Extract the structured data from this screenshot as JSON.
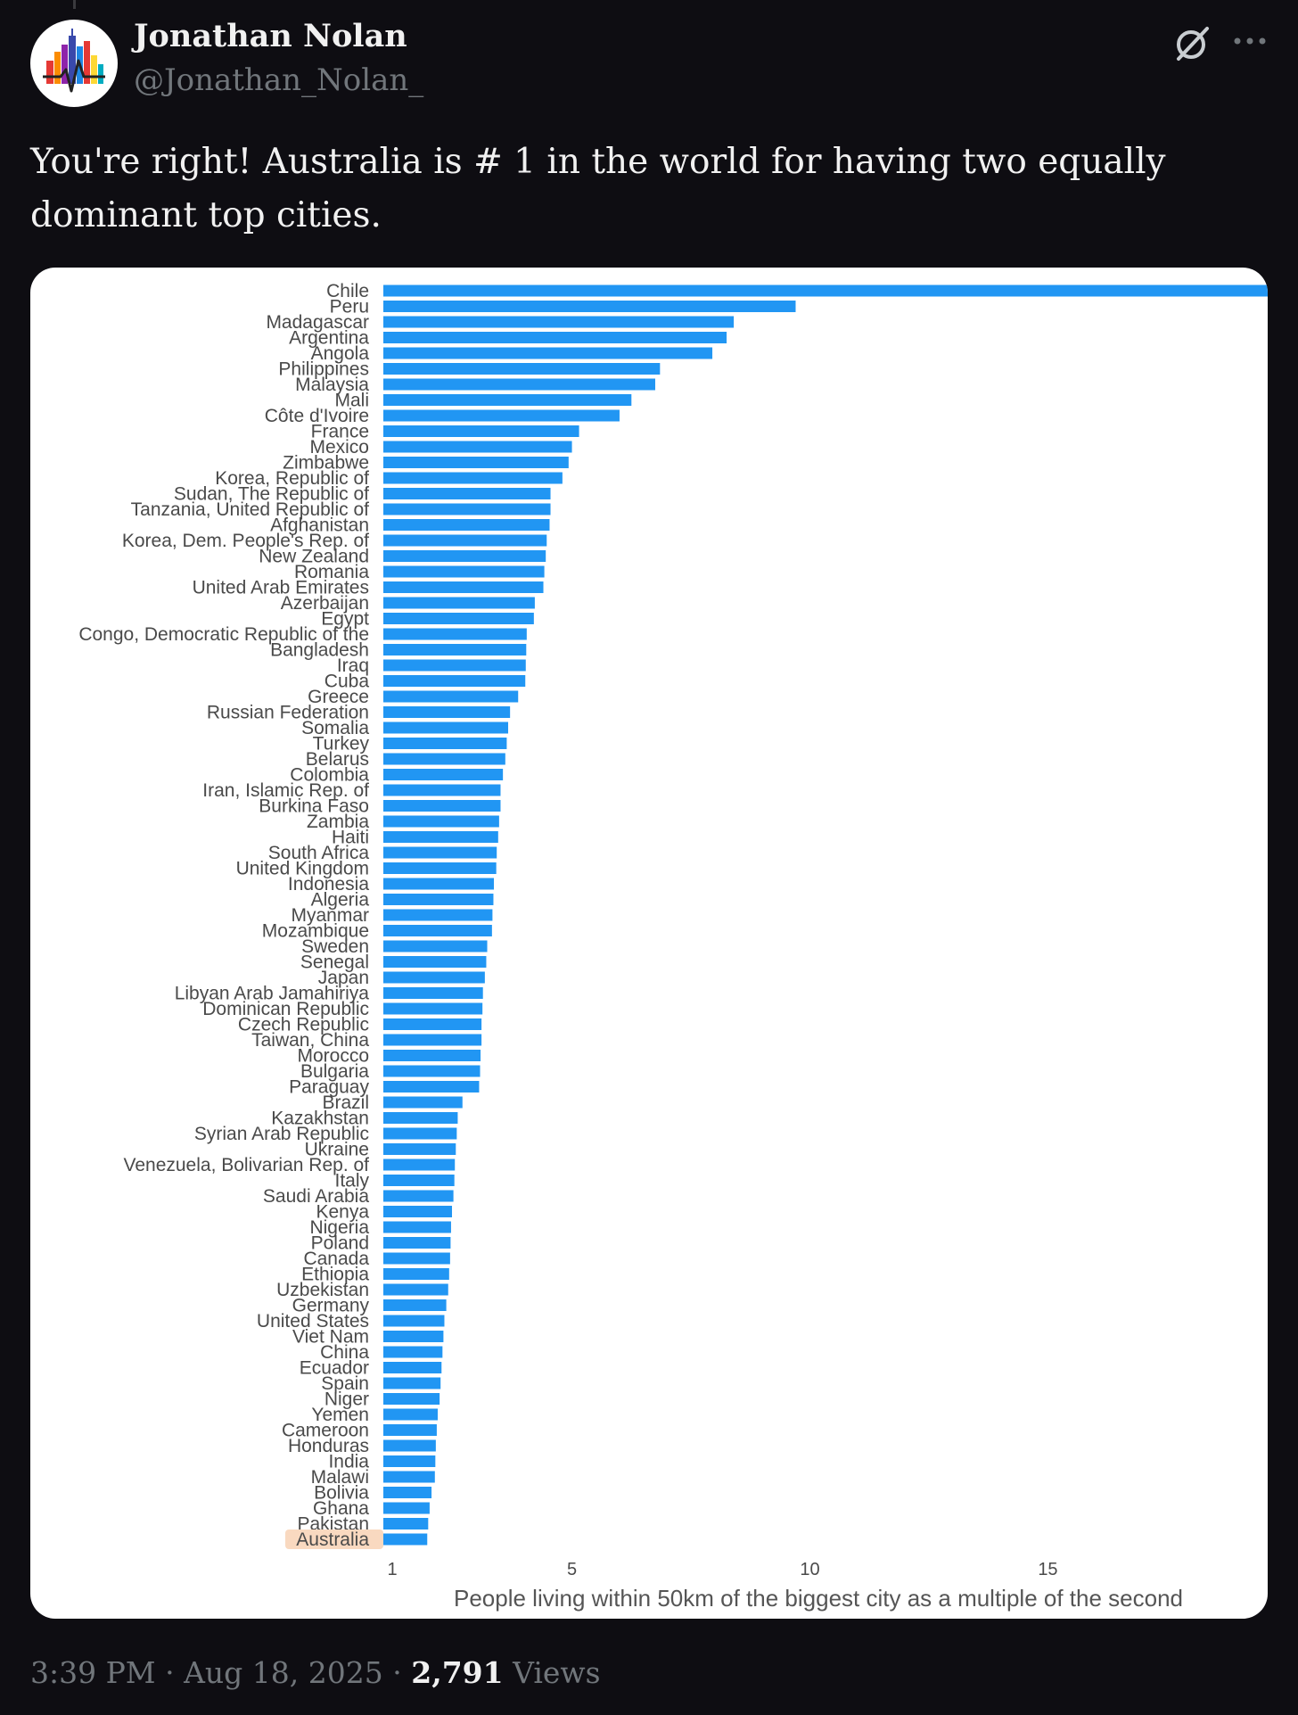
{
  "tweet": {
    "author_name": "Jonathan Nolan",
    "handle": "@Jonathan_Nolan_",
    "text": "You're right! Australia is # 1 in the world for having two equally dominant top cities.",
    "time": "3:39 PM",
    "separator": "·",
    "date": "Aug 18, 2025",
    "views_count": "2,791",
    "views_label": "Views"
  },
  "icons": {
    "avatar": "city-skyline-logo",
    "grok": "grok-slash-icon",
    "more": "more-dots-icon"
  },
  "colors": {
    "background": "#0e0d12",
    "bar": "#2196f3",
    "highlight": "#f9d9c0",
    "muted_text": "#71767b"
  },
  "chart_data": {
    "type": "bar",
    "orientation": "horizontal",
    "xlabel": "People living within 50km of the biggest city as a multiple of the second",
    "xticks": [
      1,
      5,
      10,
      15
    ],
    "xlim": [
      1,
      19
    ],
    "highlighted_category": "Australia",
    "categories": [
      "Chile",
      "Peru",
      "Madagascar",
      "Argentina",
      "Angola",
      "Philippines",
      "Malaysia",
      "Mali",
      "Côte d'Ivoire",
      "France",
      "Mexico",
      "Zimbabwe",
      "Korea, Republic of",
      "Sudan, The Republic of",
      "Tanzania, United Republic of",
      "Afghanistan",
      "Korea, Dem. People's Rep. of",
      "New Zealand",
      "Romania",
      "United Arab Emirates",
      "Azerbaijan",
      "Egypt",
      "Congo, Democratic Republic of the",
      "Bangladesh",
      "Iraq",
      "Cuba",
      "Greece",
      "Russian Federation",
      "Somalia",
      "Turkey",
      "Belarus",
      "Colombia",
      "Iran, Islamic Rep. of",
      "Burkina Faso",
      "Zambia",
      "Haiti",
      "South Africa",
      "United Kingdom",
      "Indonesia",
      "Algeria",
      "Myanmar",
      "Mozambique",
      "Sweden",
      "Senegal",
      "Japan",
      "Libyan Arab Jamahiriya",
      "Dominican Republic",
      "Czech Republic",
      "Taiwan, China",
      "Morocco",
      "Bulgaria",
      "Paraguay",
      "Brazil",
      "Kazakhstan",
      "Syrian Arab Republic",
      "Ukraine",
      "Venezuela, Bolivarian Rep. of",
      "Italy",
      "Saudi Arabia",
      "Kenya",
      "Nigeria",
      "Poland",
      "Canada",
      "Ethiopia",
      "Uzbekistan",
      "Germany",
      "United States",
      "Viet Nam",
      "China",
      "Ecuador",
      "Spain",
      "Niger",
      "Yemen",
      "Cameroon",
      "Honduras",
      "India",
      "Malawi",
      "Bolivia",
      "Ghana",
      "Pakistan",
      "Australia"
    ],
    "values": [
      19.8,
      9.7,
      8.4,
      8.25,
      7.95,
      6.85,
      6.75,
      6.25,
      6.0,
      5.15,
      5.0,
      4.93,
      4.8,
      4.55,
      4.55,
      4.53,
      4.47,
      4.45,
      4.42,
      4.4,
      4.22,
      4.2,
      4.05,
      4.04,
      4.03,
      4.02,
      3.87,
      3.7,
      3.66,
      3.63,
      3.6,
      3.55,
      3.5,
      3.5,
      3.47,
      3.45,
      3.42,
      3.41,
      3.36,
      3.35,
      3.33,
      3.32,
      3.22,
      3.2,
      3.17,
      3.13,
      3.12,
      3.1,
      3.1,
      3.08,
      3.07,
      3.05,
      2.7,
      2.6,
      2.58,
      2.56,
      2.54,
      2.53,
      2.51,
      2.48,
      2.46,
      2.45,
      2.44,
      2.42,
      2.4,
      2.36,
      2.32,
      2.3,
      2.28,
      2.26,
      2.24,
      2.22,
      2.18,
      2.16,
      2.14,
      2.13,
      2.12,
      2.05,
      2.01,
      1.98,
      1.96
    ]
  }
}
